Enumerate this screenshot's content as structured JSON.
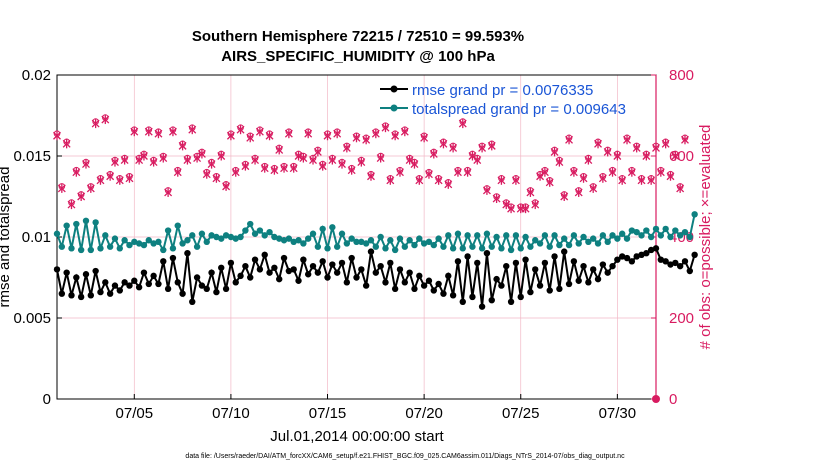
{
  "colors": {
    "rmse": "#000000",
    "totalspread": "#0e8080",
    "obs": "#d81b60",
    "legend_text": "#1a55d6",
    "grid": "#f2b8c6"
  },
  "chart_data": {
    "type": "line",
    "title_line1": "Southern Hemisphere 72215 / 72510 = 99.593%",
    "title_line2": "AIRS_SPECIFIC_HUMIDITY @ 100 hPa",
    "xlabel": "Jul.01,2014 00:00:00 start",
    "ylabel_left": "rmse and totalspread",
    "ylabel_right": "# of obs: o=possible; ×=evaluated",
    "footer": "data file: /Users/raeder/DAI/ATM_forcXX/CAM6_setup/f.e21.FHIST_BGC.f09_025.CAM6assim.011/Diags_NTrS_2014-07/obs_diag_output.nc",
    "xlim": [
      1,
      32
    ],
    "ylim_left": [
      0,
      0.02
    ],
    "ylim_right": [
      0,
      800
    ],
    "grid": true,
    "legend_position": "top-right",
    "x_ticks": [
      5,
      10,
      15,
      20,
      25,
      30
    ],
    "x_tick_labels": [
      "07/05",
      "07/10",
      "07/15",
      "07/20",
      "07/25",
      "07/30"
    ],
    "y_left_ticks": [
      0,
      0.005,
      0.01,
      0.015,
      0.02
    ],
    "y_left_tick_labels": [
      "0",
      "0.005",
      "0.01",
      "0.015",
      "0.02"
    ],
    "y_right_ticks": [
      0,
      200,
      400,
      600,
      800
    ],
    "y_right_tick_labels": [
      "0",
      "200",
      "400",
      "600",
      "800"
    ],
    "x_start": 1.0,
    "x_step": 0.25,
    "series": [
      {
        "name": "rmse grand pr = 0.0076335",
        "axis": "left",
        "marker": "dot",
        "values": [
          0.008,
          0.0065,
          0.0078,
          0.0064,
          0.0075,
          0.0063,
          0.0077,
          0.0064,
          0.0079,
          0.0066,
          0.0072,
          0.0065,
          0.007,
          0.0067,
          0.0072,
          0.007,
          0.0073,
          0.0069,
          0.0078,
          0.0071,
          0.0076,
          0.0071,
          0.0085,
          0.0068,
          0.0087,
          0.0072,
          0.0065,
          0.009,
          0.006,
          0.0075,
          0.007,
          0.0068,
          0.0078,
          0.0066,
          0.0081,
          0.0068,
          0.0084,
          0.0072,
          0.0076,
          0.0082,
          0.0075,
          0.0086,
          0.008,
          0.0089,
          0.0078,
          0.0081,
          0.0074,
          0.0087,
          0.0079,
          0.008,
          0.0073,
          0.0086,
          0.0077,
          0.0082,
          0.0078,
          0.0085,
          0.0075,
          0.0083,
          0.0078,
          0.0084,
          0.0072,
          0.0087,
          0.0075,
          0.008,
          0.007,
          0.0091,
          0.0078,
          0.0082,
          0.0072,
          0.0084,
          0.0068,
          0.008,
          0.0072,
          0.0078,
          0.0068,
          0.0076,
          0.007,
          0.0073,
          0.0067,
          0.0071,
          0.0065,
          0.0076,
          0.0064,
          0.0085,
          0.006,
          0.0088,
          0.0063,
          0.0084,
          0.0057,
          0.009,
          0.0061,
          0.0074,
          0.007,
          0.0082,
          0.006,
          0.0084,
          0.0063,
          0.0086,
          0.0066,
          0.008,
          0.007,
          0.0084,
          0.0067,
          0.0088,
          0.0068,
          0.0091,
          0.0071,
          0.0085,
          0.0073,
          0.0082,
          0.0072,
          0.008,
          0.0074,
          0.0083,
          0.0078,
          0.0082,
          0.0086,
          0.0088,
          0.0087,
          0.0085,
          0.0088,
          0.0089,
          0.009,
          0.0092,
          0.0093,
          0.0086,
          0.0085,
          0.0083,
          0.0084,
          0.0082,
          0.0085,
          0.0079,
          0.0089
        ]
      },
      {
        "name": "totalspread grand pr = 0.009643",
        "axis": "left",
        "marker": "dot",
        "values": [
          0.0102,
          0.0094,
          0.0107,
          0.0093,
          0.0108,
          0.0092,
          0.011,
          0.0092,
          0.0109,
          0.0093,
          0.0101,
          0.0094,
          0.0099,
          0.0093,
          0.0098,
          0.0095,
          0.0097,
          0.0096,
          0.0095,
          0.0098,
          0.0096,
          0.0097,
          0.0092,
          0.0104,
          0.0093,
          0.0107,
          0.0096,
          0.0098,
          0.0101,
          0.0094,
          0.0102,
          0.0097,
          0.0101,
          0.01,
          0.0099,
          0.0101,
          0.01,
          0.0099,
          0.01,
          0.0104,
          0.0108,
          0.0102,
          0.0104,
          0.0101,
          0.0103,
          0.01,
          0.0099,
          0.0098,
          0.0099,
          0.0097,
          0.0098,
          0.0096,
          0.0099,
          0.0102,
          0.0094,
          0.0105,
          0.0093,
          0.0106,
          0.0094,
          0.0102,
          0.0096,
          0.0099,
          0.0097,
          0.0097,
          0.0096,
          0.0098,
          0.0094,
          0.01,
          0.0093,
          0.0098,
          0.0092,
          0.0099,
          0.0094,
          0.0098,
          0.0095,
          0.0099,
          0.0096,
          0.0097,
          0.0095,
          0.0099,
          0.0094,
          0.0101,
          0.0093,
          0.0102,
          0.0093,
          0.0101,
          0.0094,
          0.0101,
          0.0093,
          0.0102,
          0.0094,
          0.01,
          0.0093,
          0.0101,
          0.0092,
          0.0101,
          0.0093,
          0.01,
          0.0094,
          0.0098,
          0.0096,
          0.0101,
          0.0094,
          0.0101,
          0.0095,
          0.0099,
          0.0095,
          0.0101,
          0.0096,
          0.01,
          0.0097,
          0.0099,
          0.0096,
          0.0101,
          0.0097,
          0.0101,
          0.0099,
          0.0102,
          0.0099,
          0.0104,
          0.0103,
          0.0101,
          0.0104,
          0.01,
          0.0105,
          0.0101,
          0.0105,
          0.01,
          0.0104,
          0.0101,
          0.0103,
          0.01,
          0.0114
        ]
      },
      {
        "name": "evaluated obs",
        "axis": "right",
        "marker": "star",
        "values": [
          650,
          520,
          630,
          480,
          560,
          500,
          580,
          520,
          680,
          540,
          690,
          550,
          585,
          540,
          590,
          545,
          660,
          590,
          600,
          660,
          585,
          655,
          595,
          510,
          660,
          560,
          625,
          590,
          665,
          595,
          605,
          555,
          580,
          545,
          600,
          525,
          650,
          560,
          665,
          575,
          645,
          590,
          660,
          570,
          650,
          565,
          615,
          570,
          655,
          570,
          600,
          595,
          655,
          590,
          610,
          575,
          650,
          590,
          655,
          580,
          620,
          565,
          645,
          585,
          640,
          550,
          655,
          595,
          670,
          540,
          650,
          560,
          660,
          590,
          580,
          540,
          645,
          555,
          605,
          540,
          630,
          530,
          620,
          560,
          680,
          560,
          600,
          590,
          620,
          515,
          625,
          495,
          540,
          480,
          470,
          540,
          470,
          470,
          510,
          480,
          550,
          560,
          535,
          610,
          585,
          500,
          640,
          560,
          510,
          545,
          590,
          520,
          630,
          545,
          610,
          560,
          600,
          540,
          640,
          560,
          620,
          540,
          600,
          540,
          620,
          560,
          630,
          550,
          600,
          520,
          640
        ]
      },
      {
        "name": "possible obs",
        "axis": "right",
        "marker": "circle",
        "values": [
          655,
          525,
          635,
          485,
          565,
          505,
          585,
          525,
          685,
          545,
          695,
          555,
          590,
          545,
          595,
          550,
          665,
          595,
          605,
          665,
          590,
          660,
          600,
          515,
          665,
          565,
          630,
          595,
          670,
          600,
          610,
          560,
          585,
          550,
          605,
          530,
          655,
          565,
          670,
          580,
          650,
          595,
          665,
          575,
          655,
          570,
          620,
          575,
          660,
          575,
          605,
          600,
          660,
          595,
          615,
          580,
          655,
          595,
          660,
          585,
          625,
          570,
          650,
          590,
          645,
          555,
          660,
          600,
          675,
          545,
          655,
          565,
          665,
          595,
          585,
          545,
          650,
          560,
          610,
          545,
          635,
          535,
          625,
          565,
          685,
          565,
          605,
          595,
          625,
          520,
          630,
          500,
          545,
          485,
          475,
          545,
          475,
          475,
          515,
          485,
          555,
          565,
          540,
          615,
          590,
          505,
          645,
          565,
          515,
          550,
          595,
          525,
          635,
          550,
          615,
          565,
          605,
          545,
          645,
          565,
          625,
          545,
          605,
          545,
          625,
          565,
          635,
          555,
          605,
          525,
          645
        ]
      }
    ]
  }
}
